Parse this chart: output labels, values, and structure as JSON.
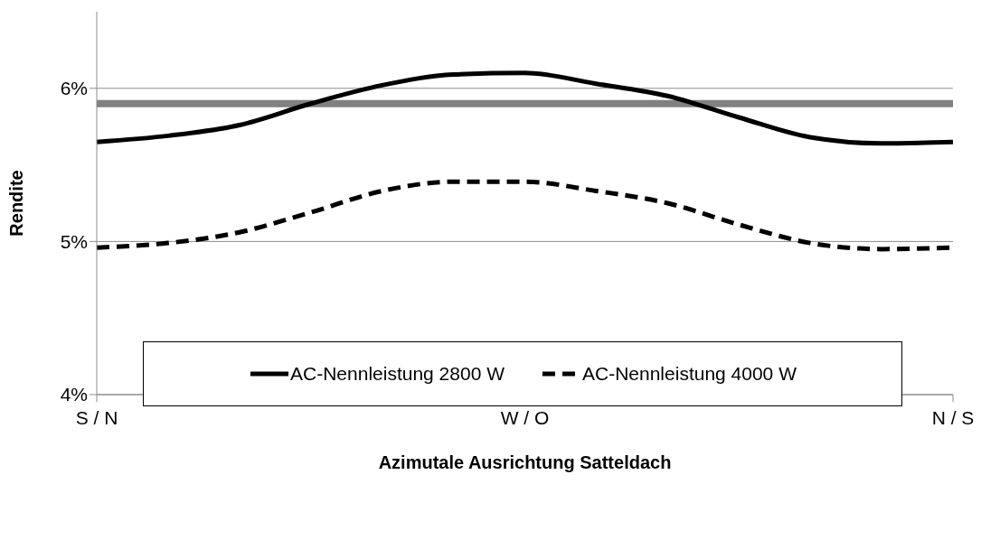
{
  "chart_data": {
    "type": "line",
    "xlabel": "Azimutale Ausrichtung Satteldach",
    "ylabel": "Rendite",
    "categories": [
      "S / N",
      null,
      null,
      null,
      null,
      null,
      "W / O",
      null,
      null,
      null,
      null,
      null,
      "N / S"
    ],
    "series": [
      {
        "name": "AC-Nennleistung 2800 W",
        "color": "#000000",
        "line_style": "solid",
        "values": [
          5.65,
          5.69,
          5.76,
          5.9,
          6.02,
          6.09,
          6.1,
          6.03,
          5.95,
          5.81,
          5.68,
          5.64,
          5.65
        ]
      },
      {
        "name": "AC-Nennleistung 4000 W",
        "color": "#000000",
        "line_style": "dashed",
        "values": [
          4.96,
          4.99,
          5.06,
          5.19,
          5.33,
          5.39,
          5.39,
          5.33,
          5.25,
          5.11,
          4.99,
          4.95,
          4.96
        ]
      }
    ],
    "ylim": [
      4,
      6.5
    ],
    "yticks": [
      {
        "value": 4,
        "label": "4%"
      },
      {
        "value": 5,
        "label": "5%"
      },
      {
        "value": 6,
        "label": "6%"
      }
    ],
    "ref_lines": [
      {
        "axis": "y",
        "value": 5.9,
        "color": "#808080"
      }
    ],
    "grid": "y",
    "legend": "bottom",
    "marker": "none"
  }
}
